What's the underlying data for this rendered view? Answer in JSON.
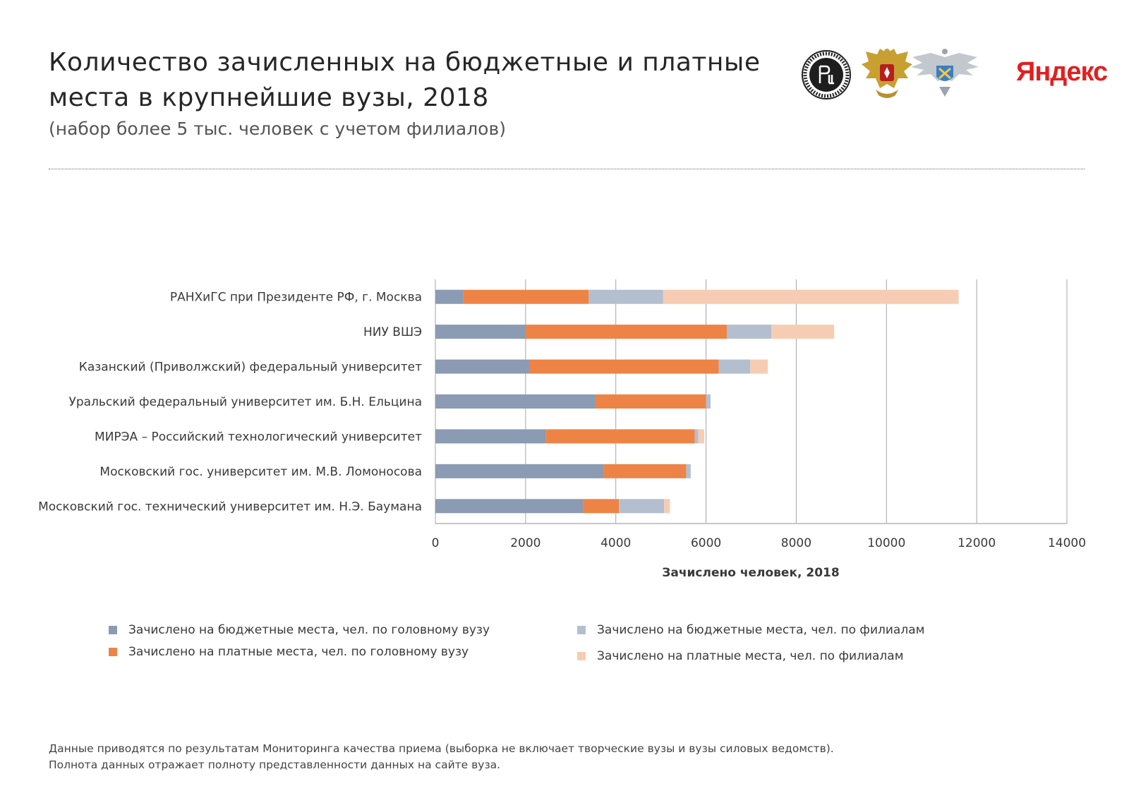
{
  "header": {
    "title_line1": "Количество зачисленных на бюджетные и платные",
    "title_line2": "места в крупнейшие вузы, 2018",
    "subtitle": "(набор более 5 тыс. человек с учетом филиалов)"
  },
  "logos": {
    "yandex": "Яндекс",
    "hse_seal_text": "ВЫСШАЯ ШКОЛА ЭКОНОМИКИ"
  },
  "colors": {
    "budget_main": "#8a9bb3",
    "paid_main": "#ee8346",
    "budget_branch": "#b3bfce",
    "paid_branch": "#f6cdb2",
    "grid": "#a6a6a6"
  },
  "chart_data": {
    "type": "bar",
    "orientation": "horizontal",
    "stacked": true,
    "title": "",
    "xlabel": "Зачислено человек, 2018",
    "ylabel": "",
    "xlim": [
      0,
      14000
    ],
    "xticks": [
      0,
      2000,
      4000,
      6000,
      8000,
      10000,
      12000,
      14000
    ],
    "grid": true,
    "categories": [
      "РАНХиГС при Президенте РФ, г. Москва",
      "НИУ ВШЭ",
      "Казанский (Приволжский) федеральный университет",
      "Уральский федеральный университет им. Б.Н. Ельцина",
      "МИРЭА  – Российский технологический университет",
      "Московский гос. университет им. М.В. Ломоносова",
      "Московский гос. технический университет им. Н.Э. Баумана"
    ],
    "series": [
      {
        "name": "Зачислено на бюджетные места, чел. по головному вузу",
        "color_key": "budget_main",
        "values": [
          620,
          2000,
          2080,
          3550,
          2450,
          3730,
          3270
        ]
      },
      {
        "name": "Зачислено на платные места, чел. по головному вузу",
        "color_key": "paid_main",
        "values": [
          2780,
          4460,
          4200,
          2450,
          3300,
          1830,
          800
        ]
      },
      {
        "name": "Зачислено на бюджетные места, чел. по филиалам",
        "color_key": "budget_branch",
        "values": [
          1650,
          990,
          700,
          100,
          80,
          100,
          1000
        ]
      },
      {
        "name": "Зачислено на платные места, чел. по филиалам",
        "color_key": "paid_branch",
        "values": [
          6550,
          1390,
          390,
          0,
          130,
          0,
          130
        ]
      }
    ]
  },
  "footnote": {
    "line1": "Данные приводятся по результатам Мониторинга качества приема (выборка не включает творческие вузы и вузы силовых ведомств).",
    "line2": "Полнота данных отражает полноту представленности данных на сайте вуза."
  }
}
